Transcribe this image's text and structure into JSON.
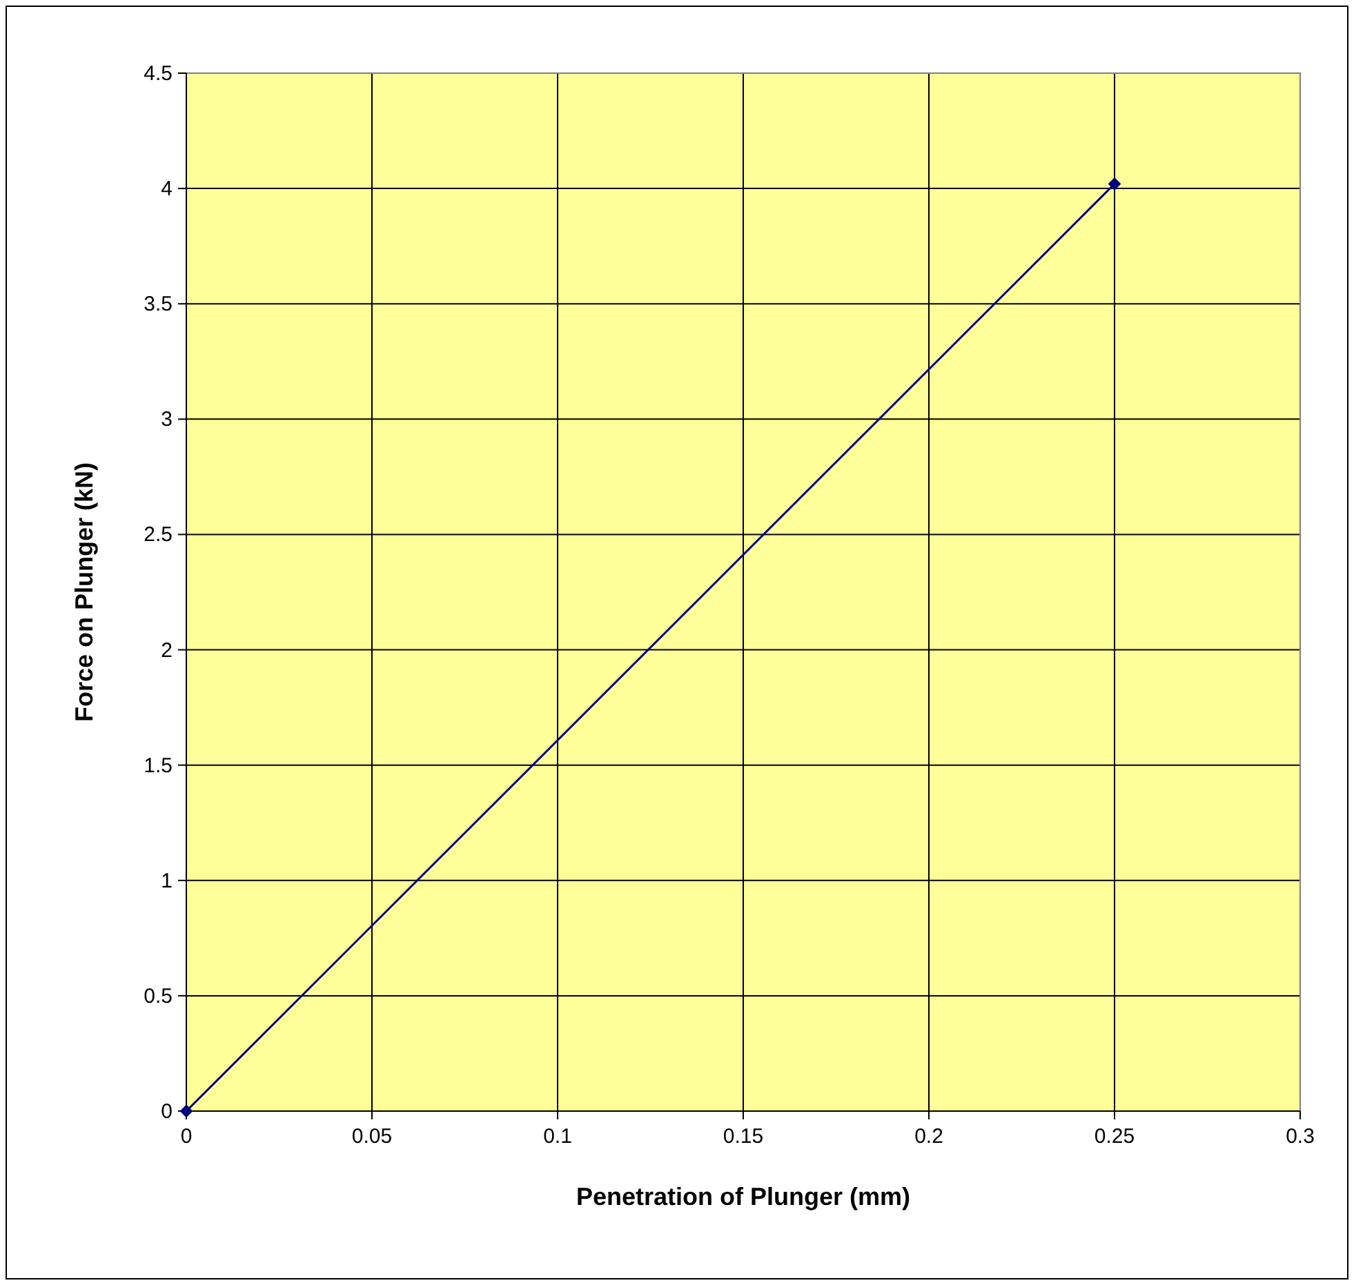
{
  "chart_data": {
    "type": "line",
    "xlabel": "Penetration of Plunger (mm)",
    "ylabel": "Force on Plunger (kN)",
    "x": [
      0,
      0.25
    ],
    "series": [
      {
        "color": "#000080",
        "values": [
          0,
          4.02
        ]
      }
    ],
    "xlim": [
      0,
      0.3
    ],
    "xticks": [
      0,
      0.05,
      0.1,
      0.15,
      0.2,
      0.25,
      0.3
    ],
    "ylim": [
      0,
      4.5
    ],
    "yticks": [
      0,
      0.5,
      1,
      1.5,
      2,
      2.5,
      3,
      3.5,
      4,
      4.5
    ],
    "grid": true,
    "marker": "diamond",
    "line_style": "solid"
  }
}
